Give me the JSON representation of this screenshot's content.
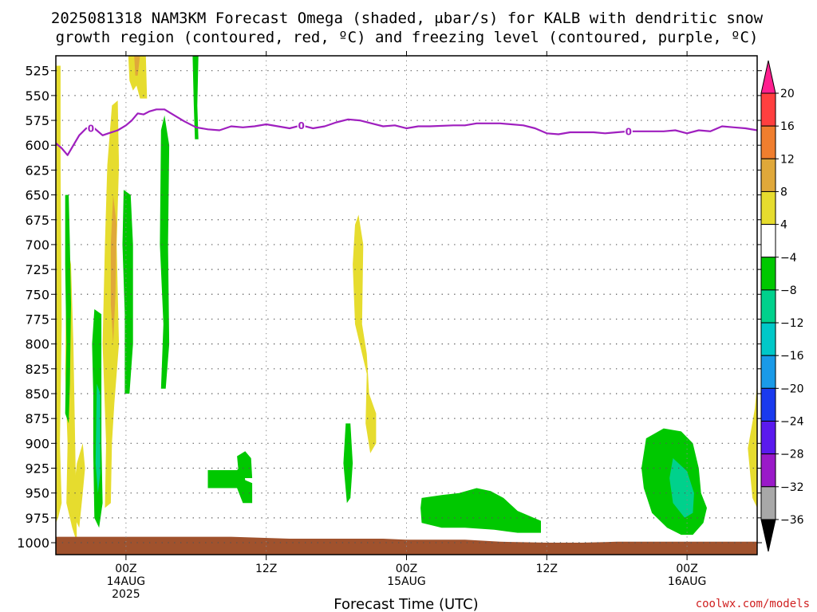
{
  "title_line1": "2025081318 NAM3KM Forecast Omega (shaded, μbar/s) for KALB with dendritic snow",
  "title_line2": "growth region (contoured, red, ºC) and freezing level (contoured, purple, ºC)",
  "credit": "coolwx.com/models",
  "chart_data": {
    "type": "time-height contour",
    "xlabel": "Forecast Time (UTC)",
    "x_ticks": [
      {
        "hour": 6,
        "line1": "00Z",
        "line2": "14AUG",
        "line3": "2025"
      },
      {
        "hour": 18,
        "line1": "12Z",
        "line2": "",
        "line3": ""
      },
      {
        "hour": 30,
        "line1": "00Z",
        "line2": "15AUG",
        "line3": ""
      },
      {
        "hour": 42,
        "line1": "12Z",
        "line2": "",
        "line3": ""
      },
      {
        "hour": 54,
        "line1": "00Z",
        "line2": "16AUG",
        "line3": ""
      }
    ],
    "xlim": [
      0,
      60
    ],
    "y_ticks": [
      525,
      550,
      575,
      600,
      625,
      650,
      675,
      700,
      725,
      750,
      775,
      800,
      825,
      850,
      875,
      900,
      925,
      950,
      975,
      1000
    ],
    "ylim": [
      510,
      1012
    ],
    "grid": true,
    "colorbar": {
      "tick_labels": [
        "20",
        "16",
        "12",
        "8",
        "4",
        "−4",
        "−8",
        "−12",
        "−16",
        "−20",
        "−24",
        "−28",
        "−32",
        "−36"
      ],
      "colors": [
        "#ff1f8f",
        "#ff3f3f",
        "#f07e2e",
        "#e0a83a",
        "#e6dc2e",
        "#ffffff",
        "#00c800",
        "#00d18c",
        "#00c8c8",
        "#1a9ae8",
        "#1a3aee",
        "#5a1aee",
        "#9a1ac8",
        "#a8a8a8",
        "#000000"
      ]
    },
    "freezing_level": {
      "label": "0",
      "label_hours": [
        3,
        21,
        49
      ],
      "points": [
        [
          0,
          598
        ],
        [
          0.5,
          603
        ],
        [
          1,
          610
        ],
        [
          1.5,
          600
        ],
        [
          2,
          590
        ],
        [
          2.6,
          583
        ],
        [
          3.3,
          583
        ],
        [
          4,
          590
        ],
        [
          4.5,
          588
        ],
        [
          5.3,
          585
        ],
        [
          6,
          580
        ],
        [
          6.5,
          575
        ],
        [
          7,
          568
        ],
        [
          7.5,
          569
        ],
        [
          8,
          566
        ],
        [
          8.6,
          564
        ],
        [
          9.3,
          564
        ],
        [
          10,
          569
        ],
        [
          11,
          576
        ],
        [
          12,
          582
        ],
        [
          13,
          584
        ],
        [
          14,
          585
        ],
        [
          15,
          581
        ],
        [
          16,
          582
        ],
        [
          17,
          581
        ],
        [
          18,
          579
        ],
        [
          19,
          581
        ],
        [
          20,
          583
        ],
        [
          21,
          580
        ],
        [
          22,
          583
        ],
        [
          23,
          581
        ],
        [
          24,
          577
        ],
        [
          25,
          574
        ],
        [
          26,
          575
        ],
        [
          27,
          578
        ],
        [
          28,
          581
        ],
        [
          29,
          580
        ],
        [
          30,
          583
        ],
        [
          31,
          581
        ],
        [
          32,
          581
        ],
        [
          34,
          580
        ],
        [
          35,
          580
        ],
        [
          36,
          578
        ],
        [
          38,
          578
        ],
        [
          40,
          580
        ],
        [
          41,
          583
        ],
        [
          42,
          588
        ],
        [
          43,
          589
        ],
        [
          44,
          587
        ],
        [
          46,
          587
        ],
        [
          47,
          588
        ],
        [
          48,
          587
        ],
        [
          49,
          586
        ],
        [
          50,
          586
        ],
        [
          51,
          586
        ],
        [
          52,
          586
        ],
        [
          53,
          585
        ],
        [
          54,
          588
        ],
        [
          55,
          585
        ],
        [
          56,
          586
        ],
        [
          57,
          581
        ],
        [
          58,
          582
        ],
        [
          59,
          583
        ],
        [
          60,
          585
        ]
      ]
    },
    "surface": {
      "points": [
        [
          0,
          994
        ],
        [
          5,
          994
        ],
        [
          10,
          994
        ],
        [
          15,
          994
        ],
        [
          20,
          996
        ],
        [
          25,
          996
        ],
        [
          28,
          996
        ],
        [
          30,
          997
        ],
        [
          35,
          997
        ],
        [
          38,
          999
        ],
        [
          42,
          1000
        ],
        [
          45,
          1000
        ],
        [
          48,
          999
        ],
        [
          55,
          999
        ],
        [
          60,
          999
        ]
      ]
    },
    "omega_regions": [
      {
        "value": 4,
        "color": "#e6dc2e",
        "points": [
          [
            0.0,
            520
          ],
          [
            0.4,
            520
          ],
          [
            0.4,
            620
          ],
          [
            0.5,
            780
          ],
          [
            0.35,
            900
          ],
          [
            0.5,
            960
          ],
          [
            0.2,
            975
          ],
          [
            0.0,
            980
          ]
        ]
      },
      {
        "value": 4,
        "color": "#e6dc2e",
        "points": [
          [
            1.8,
            1000
          ],
          [
            1.5,
            800
          ],
          [
            1.3,
            720
          ],
          [
            1.0,
            700
          ],
          [
            0.9,
            720
          ],
          [
            0.8,
            830
          ],
          [
            1.0,
            900
          ],
          [
            0.9,
            960
          ],
          [
            1.4,
            985
          ]
        ]
      },
      {
        "value": 4,
        "color": "#e6dc2e",
        "points": [
          [
            2.3,
            900
          ],
          [
            2.5,
            925
          ],
          [
            2.3,
            950
          ],
          [
            2.0,
            985
          ],
          [
            1.6,
            975
          ],
          [
            1.5,
            950
          ],
          [
            1.8,
            920
          ]
        ]
      },
      {
        "value": 4,
        "color": "#e6dc2e",
        "points": [
          [
            4.8,
            560
          ],
          [
            5.3,
            555
          ],
          [
            5.4,
            620
          ],
          [
            5.2,
            700
          ],
          [
            5.4,
            800
          ],
          [
            5.0,
            860
          ],
          [
            4.8,
            900
          ],
          [
            4.7,
            960
          ],
          [
            4.2,
            965
          ],
          [
            4.3,
            900
          ],
          [
            4.0,
            800
          ],
          [
            4.2,
            700
          ],
          [
            4.4,
            620
          ]
        ]
      },
      {
        "value": 8,
        "color": "#e0a83a",
        "points": [
          [
            4.9,
            650
          ],
          [
            5.2,
            680
          ],
          [
            5.1,
            750
          ],
          [
            4.9,
            800
          ],
          [
            4.7,
            760
          ],
          [
            4.7,
            700
          ]
        ]
      },
      {
        "value": 4,
        "color": "#e6dc2e",
        "points": [
          [
            6.2,
            510
          ],
          [
            7.7,
            510
          ],
          [
            7.8,
            553
          ],
          [
            7.2,
            553
          ],
          [
            6.9,
            540
          ],
          [
            6.6,
            545
          ],
          [
            6.3,
            535
          ]
        ]
      },
      {
        "value": 8,
        "color": "#e0a83a",
        "points": [
          [
            6.7,
            510
          ],
          [
            7.2,
            510
          ],
          [
            7.0,
            530
          ],
          [
            6.8,
            530
          ]
        ]
      },
      {
        "value": 4,
        "color": "#e6dc2e",
        "points": [
          [
            25.6,
            680
          ],
          [
            25.9,
            670
          ],
          [
            26.3,
            700
          ],
          [
            26.2,
            780
          ],
          [
            26.6,
            810
          ],
          [
            26.8,
            850
          ],
          [
            27.4,
            870
          ],
          [
            27.4,
            900
          ],
          [
            26.9,
            910
          ],
          [
            26.5,
            880
          ],
          [
            26.6,
            830
          ],
          [
            26.0,
            800
          ],
          [
            25.6,
            780
          ],
          [
            25.4,
            720
          ]
        ]
      },
      {
        "value": 4,
        "color": "#e6dc2e",
        "points": [
          [
            59.8,
            865
          ],
          [
            60,
            840
          ],
          [
            60,
            965
          ],
          [
            59.6,
            955
          ],
          [
            59.2,
            905
          ]
        ]
      },
      {
        "value": -4,
        "color": "#00c800",
        "points": [
          [
            0.8,
            650
          ],
          [
            1.1,
            650
          ],
          [
            1.2,
            700
          ],
          [
            1.3,
            760
          ],
          [
            1.2,
            840
          ],
          [
            1.1,
            880
          ],
          [
            0.8,
            870
          ],
          [
            0.9,
            800
          ],
          [
            0.8,
            720
          ]
        ]
      },
      {
        "value": -4,
        "color": "#00c800",
        "points": [
          [
            3.3,
            765
          ],
          [
            3.9,
            770
          ],
          [
            3.9,
            900
          ],
          [
            4.0,
            960
          ],
          [
            3.7,
            985
          ],
          [
            3.3,
            975
          ],
          [
            3.2,
            910
          ],
          [
            3.2,
            850
          ],
          [
            3.1,
            800
          ]
        ]
      },
      {
        "value": -8,
        "color": "#00d18c",
        "points": [
          [
            3.5,
            840
          ],
          [
            3.8,
            850
          ],
          [
            3.8,
            930
          ],
          [
            3.6,
            950
          ],
          [
            3.4,
            920
          ]
        ]
      },
      {
        "value": -4,
        "color": "#00c800",
        "points": [
          [
            5.8,
            645
          ],
          [
            6.4,
            650
          ],
          [
            6.6,
            700
          ],
          [
            6.6,
            800
          ],
          [
            6.3,
            850
          ],
          [
            5.9,
            850
          ],
          [
            5.9,
            770
          ],
          [
            5.7,
            700
          ]
        ]
      },
      {
        "value": -4,
        "color": "#00c800",
        "points": [
          [
            9.0,
            585
          ],
          [
            9.3,
            570
          ],
          [
            9.7,
            600
          ],
          [
            9.6,
            700
          ],
          [
            9.7,
            800
          ],
          [
            9.4,
            845
          ],
          [
            9.0,
            845
          ],
          [
            9.2,
            780
          ],
          [
            8.9,
            700
          ]
        ]
      },
      {
        "value": -4,
        "color": "#00c800",
        "points": [
          [
            11.7,
            510
          ],
          [
            12.2,
            510
          ],
          [
            12.1,
            560
          ],
          [
            12.2,
            594
          ],
          [
            11.9,
            594
          ],
          [
            11.8,
            560
          ]
        ]
      },
      {
        "value": -4,
        "color": "#00c800",
        "points": [
          [
            13.0,
            927
          ],
          [
            15.5,
            927
          ],
          [
            16.0,
            920
          ],
          [
            16.2,
            937
          ],
          [
            16.8,
            940
          ],
          [
            16.8,
            960
          ],
          [
            16.0,
            960
          ],
          [
            15.5,
            945
          ],
          [
            13.0,
            945
          ]
        ]
      },
      {
        "value": -4,
        "color": "#00c800",
        "points": [
          [
            15.5,
            913
          ],
          [
            16.2,
            908
          ],
          [
            16.7,
            915
          ],
          [
            16.8,
            935
          ],
          [
            16.0,
            935
          ],
          [
            15.6,
            925
          ]
        ]
      },
      {
        "value": -4,
        "color": "#00c800",
        "points": [
          [
            24.8,
            880
          ],
          [
            25.2,
            880
          ],
          [
            25.4,
            920
          ],
          [
            25.2,
            955
          ],
          [
            24.9,
            960
          ],
          [
            24.6,
            920
          ]
        ]
      },
      {
        "value": -4,
        "color": "#00c800",
        "points": [
          [
            31.3,
            955
          ],
          [
            33,
            952
          ],
          [
            34.5,
            950
          ],
          [
            36,
            945
          ],
          [
            37.2,
            948
          ],
          [
            38.3,
            955
          ],
          [
            39.5,
            968
          ],
          [
            41.5,
            978
          ],
          [
            41.5,
            990
          ],
          [
            39.5,
            990
          ],
          [
            37.5,
            987
          ],
          [
            35,
            985
          ],
          [
            33,
            985
          ],
          [
            31.3,
            980
          ],
          [
            31.2,
            965
          ]
        ]
      },
      {
        "value": -4,
        "color": "#00c800",
        "points": [
          [
            50.5,
            895
          ],
          [
            52,
            885
          ],
          [
            53.5,
            888
          ],
          [
            54.5,
            900
          ],
          [
            55,
            925
          ],
          [
            55.2,
            950
          ],
          [
            55.7,
            965
          ],
          [
            55.4,
            980
          ],
          [
            54.5,
            992
          ],
          [
            53.5,
            992
          ],
          [
            52.3,
            985
          ],
          [
            51,
            970
          ],
          [
            50.3,
            945
          ],
          [
            50.1,
            925
          ]
        ]
      },
      {
        "value": -8,
        "color": "#00d18c",
        "points": [
          [
            52.8,
            915
          ],
          [
            54,
            928
          ],
          [
            54.6,
            950
          ],
          [
            54.5,
            970
          ],
          [
            53.8,
            975
          ],
          [
            52.8,
            960
          ],
          [
            52.5,
            935
          ]
        ]
      }
    ]
  }
}
